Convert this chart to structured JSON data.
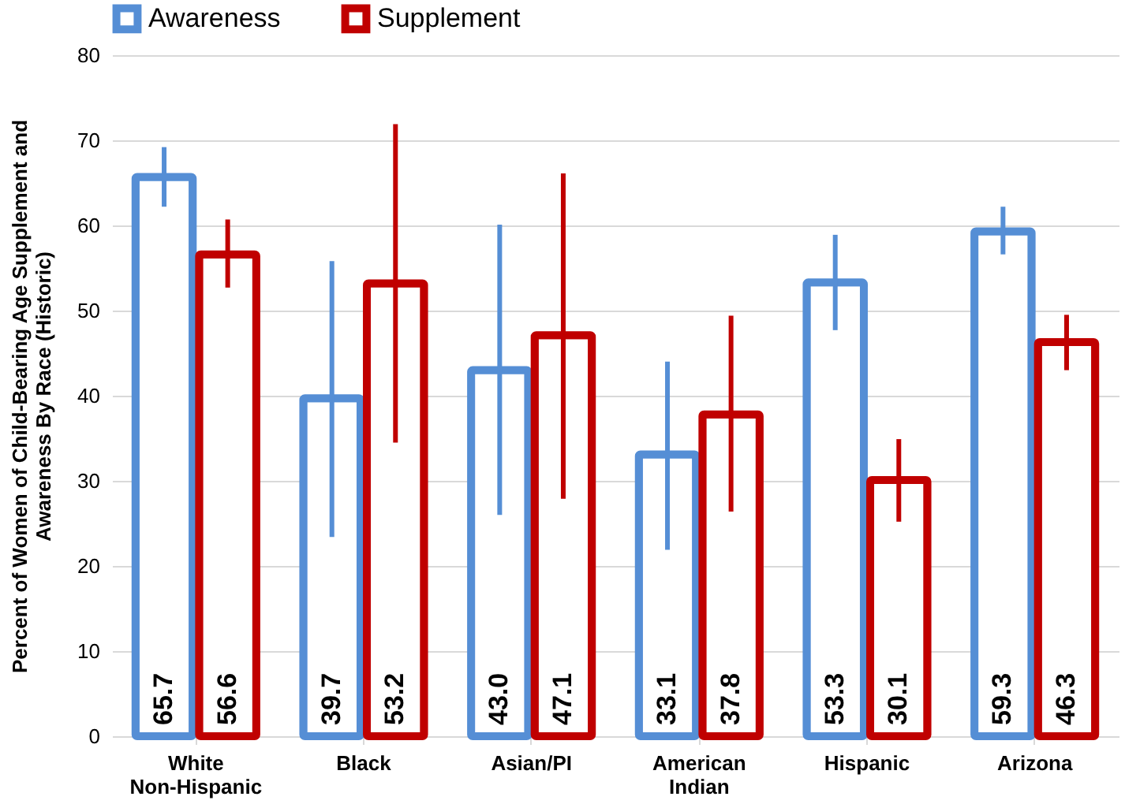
{
  "chart_data": {
    "type": "bar",
    "ylabel": "Percent of Women of Child-Bearing Age Supplement and Awareness By Race (Historic)",
    "categories": [
      "White Non-Hispanic",
      "Black",
      "Asian/PI",
      "American Indian",
      "Hispanic",
      "Arizona"
    ],
    "series": [
      {
        "name": "Awareness",
        "color": "#558ed5",
        "values": [
          65.7,
          39.7,
          43.0,
          33.1,
          53.3,
          59.3
        ],
        "value_labels": [
          "65.7",
          "39.7",
          "43.0",
          "33.1",
          "53.3",
          "59.3"
        ],
        "errors": [
          [
            62.2,
            69.2
          ],
          [
            23.4,
            55.8
          ],
          [
            26,
            60.1
          ],
          [
            21.9,
            44
          ],
          [
            47.7,
            58.9
          ],
          [
            56.6,
            62.2
          ]
        ]
      },
      {
        "name": "Supplement",
        "color": "#c00000",
        "values": [
          56.6,
          53.2,
          47.1,
          37.8,
          30.1,
          46.3
        ],
        "value_labels": [
          "56.6",
          "53.2",
          "47.1",
          "37.8",
          "30.1",
          "46.3"
        ],
        "errors": [
          [
            52.7,
            60.7
          ],
          [
            34.5,
            71.9
          ],
          [
            27.9,
            66.1
          ],
          [
            26.4,
            49.4
          ],
          [
            25.2,
            34.9
          ],
          [
            43,
            49.5
          ]
        ]
      }
    ],
    "ylim": [
      0,
      80
    ],
    "yticks": [
      0,
      10,
      20,
      30,
      40,
      50,
      60,
      70,
      80
    ],
    "grid": "y",
    "legend": "top"
  }
}
